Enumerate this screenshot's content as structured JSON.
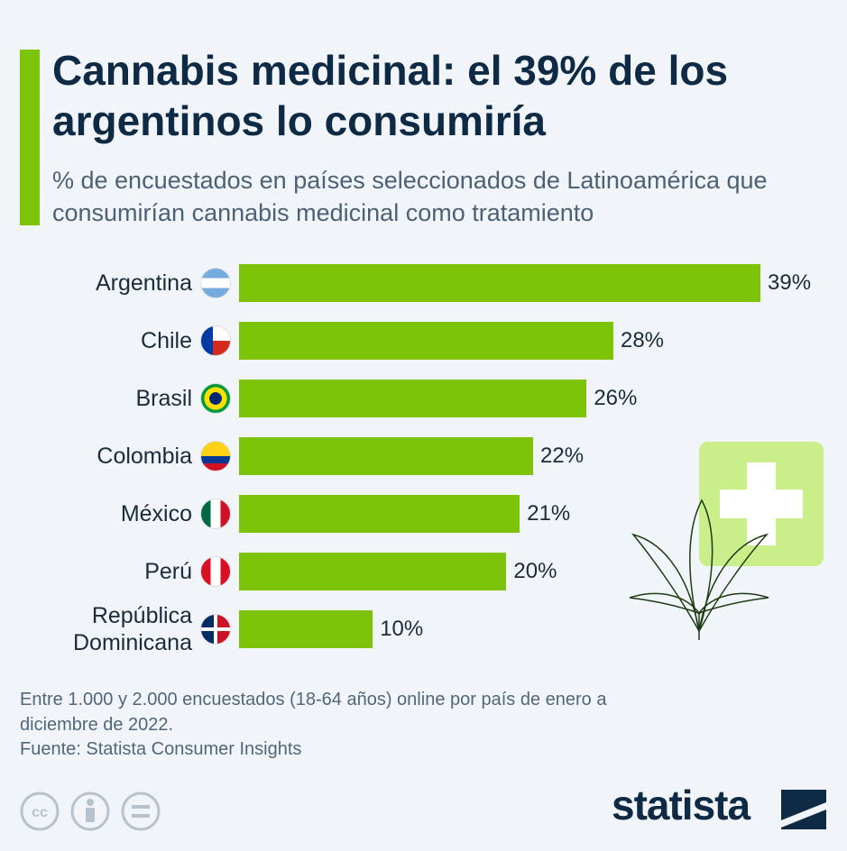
{
  "chart_data": {
    "type": "bar",
    "orientation": "horizontal",
    "title": "Cannabis medicinal: el 39% de los argentinos lo consumiría",
    "subtitle": "% de encuestados en países seleccionados de Latinoamérica que consumirían cannabis medicinal como tratamiento",
    "categories": [
      "Argentina",
      "Chile",
      "Brasil",
      "Colombia",
      "México",
      "Perú",
      "República Dominicana"
    ],
    "values": [
      39,
      28,
      26,
      22,
      21,
      20,
      10
    ],
    "value_labels": [
      "39%",
      "28%",
      "26%",
      "22%",
      "21%",
      "20%",
      "10%"
    ],
    "color": "#7dc30a",
    "note": "Entre 1.000 y 2.000 encuestados (18-64 años) online por país de enero a diciembre de 2022.",
    "source": "Fuente: Statista Consumer Insights",
    "brand": "statista"
  }
}
